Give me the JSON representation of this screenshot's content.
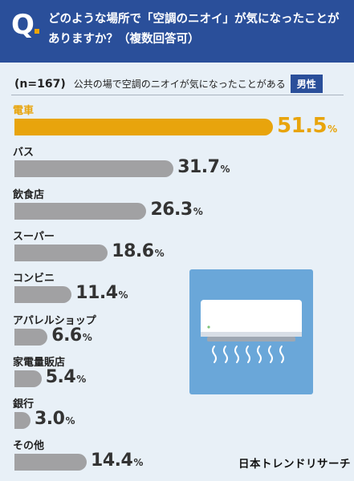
{
  "header": {
    "q_mark": "Q",
    "question": "どのような場所で「空調のニオイ」が気になったことがありますか？（複数回答可）"
  },
  "subheader": {
    "n": "(n=167)",
    "description": "公共の場で空調のニオイが気になったことがある",
    "badge": "男性"
  },
  "chart_data": {
    "type": "bar",
    "orientation": "horizontal",
    "categories": [
      "電車",
      "バス",
      "飲食店",
      "スーパー",
      "コンビニ",
      "アパレルショップ",
      "家電量販店",
      "銀行",
      "その他"
    ],
    "values": [
      51.5,
      31.7,
      26.3,
      18.6,
      11.4,
      6.6,
      5.4,
      3.0,
      14.4
    ],
    "value_labels": [
      "51.5",
      "31.7",
      "26.3",
      "18.6",
      "11.4",
      "6.6",
      "5.4",
      "3.0",
      "14.4"
    ],
    "unit": "%",
    "highlight_index": 0,
    "colors": {
      "highlight": "#e8a40c",
      "default": "#a1a1a3",
      "header": "#2a4f9a",
      "background": "#e8f0f7"
    }
  },
  "illustration": {
    "icon": "air-conditioner-icon"
  },
  "footer": {
    "logo": "日本トレンドリサーチ"
  }
}
